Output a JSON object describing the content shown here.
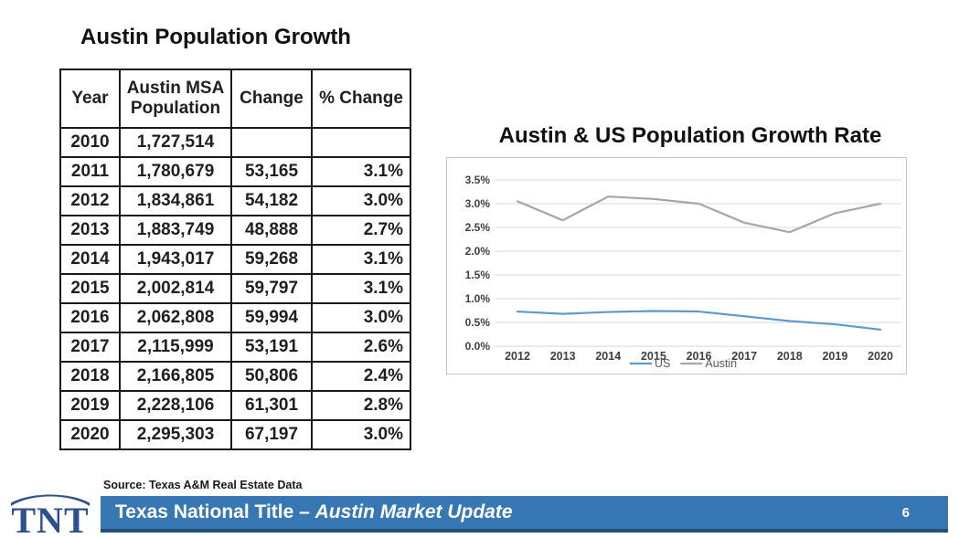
{
  "slide": {
    "table_section": {
      "title": "Austin Population Growth",
      "table": {
        "columns": [
          "Year",
          "Austin MSA Population",
          "Change",
          "% Change"
        ],
        "rows": [
          [
            "2010",
            "1,727,514",
            "",
            ""
          ],
          [
            "2011",
            "1,780,679",
            "53,165",
            "3.1%"
          ],
          [
            "2012",
            "1,834,861",
            "54,182",
            "3.0%"
          ],
          [
            "2013",
            "1,883,749",
            "48,888",
            "2.7%"
          ],
          [
            "2014",
            "1,943,017",
            "59,268",
            "3.1%"
          ],
          [
            "2015",
            "2,002,814",
            "59,797",
            "3.1%"
          ],
          [
            "2016",
            "2,062,808",
            "59,994",
            "3.0%"
          ],
          [
            "2017",
            "2,115,999",
            "53,191",
            "2.6%"
          ],
          [
            "2018",
            "2,166,805",
            "50,806",
            "2.4%"
          ],
          [
            "2019",
            "2,228,106",
            "61,301",
            "2.8%"
          ],
          [
            "2020",
            "2,295,303",
            "67,197",
            "3.0%"
          ]
        ]
      }
    },
    "chart_section": {
      "title": "Austin & US Population Growth Rate"
    },
    "footer": {
      "source": "Source: Texas A&M Real Estate Data",
      "logo_text": "TNT",
      "bar_title_regular": "Texas National Title – ",
      "bar_title_italic": "Austin Market Update",
      "page_number": "6",
      "bar_color": "#3778B4",
      "logo_color": "#2E5090"
    }
  },
  "chart_data": {
    "type": "line",
    "title": "Austin & US Population Growth Rate",
    "categories": [
      "2012",
      "2013",
      "2014",
      "2015",
      "2016",
      "2017",
      "2018",
      "2019",
      "2020"
    ],
    "series": [
      {
        "name": "US",
        "color": "#5B9BD5",
        "values": [
          0.73,
          0.68,
          0.72,
          0.74,
          0.73,
          0.63,
          0.53,
          0.46,
          0.35
        ]
      },
      {
        "name": "Austin",
        "color": "#A6A6A6",
        "values": [
          3.05,
          2.65,
          3.15,
          3.1,
          3.0,
          2.6,
          2.4,
          2.8,
          3.0
        ]
      }
    ],
    "xlabel": "",
    "ylabel": "",
    "ylim": [
      0.0,
      3.5
    ],
    "ytick_step": 0.5,
    "ytick_suffix": "%",
    "grid": true,
    "legend_position": "bottom",
    "grid_color": "#D9D9D9",
    "axis_text_color": "#404040"
  }
}
